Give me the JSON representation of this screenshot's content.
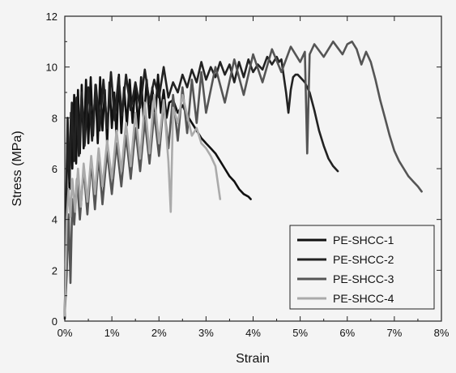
{
  "chart_data": {
    "type": "line",
    "title": "",
    "xlabel": "Strain",
    "ylabel": "Stress (MPa)",
    "xlim": [
      0,
      8
    ],
    "ylim": [
      0,
      12
    ],
    "x_ticks": [
      0,
      1,
      2,
      3,
      4,
      5,
      6,
      7,
      8
    ],
    "x_tick_labels": [
      "0%",
      "1%",
      "2%",
      "3%",
      "4%",
      "5%",
      "6%",
      "7%",
      "8%"
    ],
    "y_ticks": [
      0,
      2,
      4,
      6,
      8,
      10,
      12
    ],
    "y_tick_labels": [
      "0",
      "2",
      "4",
      "6",
      "8",
      "10",
      "12"
    ],
    "grid": false,
    "legend_position": "bottom-right",
    "series": [
      {
        "name": "PE-SHCC-1",
        "color": "#111111",
        "x": [
          0,
          0.03,
          0.06,
          0.1,
          0.13,
          0.16,
          0.2,
          0.24,
          0.28,
          0.32,
          0.36,
          0.4,
          0.45,
          0.5,
          0.55,
          0.6,
          0.65,
          0.7,
          0.75,
          0.8,
          0.85,
          0.9,
          0.95,
          1.0,
          1.05,
          1.1,
          1.15,
          1.2,
          1.26,
          1.32,
          1.38,
          1.44,
          1.5,
          1.56,
          1.62,
          1.68,
          1.74,
          1.8,
          1.86,
          1.92,
          1.98,
          2.04,
          2.1,
          2.16,
          2.22,
          2.3,
          2.4,
          2.5,
          2.6,
          2.7,
          2.8,
          2.9,
          3.0,
          3.1,
          3.2,
          3.3,
          3.4,
          3.5,
          3.6,
          3.7,
          3.8,
          3.9,
          3.95
        ],
        "y": [
          0.2,
          4.5,
          7.6,
          5.2,
          8.2,
          6.0,
          8.9,
          6.2,
          9.1,
          6.6,
          9.3,
          6.8,
          9.5,
          7.0,
          9.6,
          7.3,
          9.3,
          7.0,
          9.6,
          7.5,
          9.1,
          7.0,
          9.4,
          7.6,
          9.0,
          7.2,
          9.7,
          7.4,
          9.2,
          7.7,
          9.5,
          7.8,
          9.3,
          7.6,
          9.6,
          7.8,
          9.5,
          8.0,
          9.2,
          7.9,
          9.7,
          8.2,
          9.1,
          8.0,
          8.6,
          8.7,
          8.2,
          8.5,
          8.1,
          7.8,
          7.5,
          7.2,
          7.0,
          6.8,
          6.6,
          6.3,
          6.0,
          5.7,
          5.5,
          5.2,
          5.0,
          4.9,
          4.8
        ]
      },
      {
        "name": "PE-SHCC-2",
        "color": "#222222",
        "x": [
          0,
          0.03,
          0.06,
          0.1,
          0.15,
          0.2,
          0.25,
          0.3,
          0.36,
          0.42,
          0.5,
          0.58,
          0.66,
          0.74,
          0.82,
          0.9,
          0.98,
          1.06,
          1.14,
          1.22,
          1.3,
          1.4,
          1.5,
          1.6,
          1.7,
          1.8,
          1.9,
          2.0,
          2.1,
          2.2,
          2.3,
          2.4,
          2.5,
          2.6,
          2.7,
          2.8,
          2.9,
          3.0,
          3.1,
          3.2,
          3.3,
          3.4,
          3.5,
          3.6,
          3.7,
          3.8,
          3.9,
          4.0,
          4.1,
          4.2,
          4.3,
          4.4,
          4.5,
          4.55,
          4.6,
          4.7,
          4.75,
          4.8,
          4.85,
          4.9,
          4.95,
          5.0,
          5.1,
          5.2,
          5.3,
          5.4,
          5.5,
          5.6,
          5.7,
          5.8
        ],
        "y": [
          0.1,
          4.6,
          8.0,
          5.5,
          8.6,
          6.3,
          8.8,
          6.5,
          9.0,
          6.9,
          9.2,
          7.1,
          9.3,
          7.5,
          9.5,
          7.6,
          9.8,
          7.9,
          9.6,
          8.1,
          9.7,
          8.3,
          9.4,
          8.4,
          9.9,
          8.6,
          9.5,
          8.8,
          10.0,
          8.8,
          9.4,
          9.0,
          9.7,
          9.2,
          9.9,
          9.4,
          10.2,
          9.5,
          10.0,
          9.6,
          10.2,
          9.7,
          10.1,
          9.4,
          10.2,
          9.6,
          10.3,
          9.8,
          10.1,
          9.9,
          10.4,
          10.1,
          10.4,
          10.2,
          10.3,
          9.0,
          8.2,
          9.1,
          9.6,
          9.7,
          9.7,
          9.6,
          9.4,
          9.0,
          8.3,
          7.5,
          6.9,
          6.4,
          6.1,
          5.9
        ]
      },
      {
        "name": "PE-SHCC-3",
        "color": "#555555",
        "x": [
          0,
          0.04,
          0.08,
          0.12,
          0.16,
          0.2,
          0.26,
          0.32,
          0.4,
          0.48,
          0.56,
          0.64,
          0.72,
          0.8,
          0.9,
          1.0,
          1.1,
          1.2,
          1.3,
          1.4,
          1.5,
          1.6,
          1.7,
          1.8,
          1.9,
          2.0,
          2.1,
          2.2,
          2.3,
          2.4,
          2.5,
          2.6,
          2.7,
          2.8,
          2.9,
          3.0,
          3.2,
          3.4,
          3.6,
          3.8,
          4.0,
          4.2,
          4.4,
          4.6,
          4.8,
          5.0,
          5.1,
          5.15,
          5.2,
          5.3,
          5.5,
          5.7,
          5.9,
          6.0,
          6.1,
          6.2,
          6.3,
          6.4,
          6.5,
          6.6,
          6.7,
          6.8,
          6.9,
          7.0,
          7.1,
          7.2,
          7.3,
          7.4,
          7.5,
          7.58
        ],
        "y": [
          0.3,
          1.8,
          4.2,
          1.5,
          4.8,
          3.8,
          5.6,
          4.0,
          6.0,
          4.2,
          6.3,
          4.4,
          6.5,
          4.6,
          6.7,
          5.0,
          7.0,
          5.3,
          7.3,
          5.6,
          7.6,
          5.9,
          7.9,
          6.2,
          8.2,
          6.5,
          8.6,
          6.8,
          8.9,
          7.1,
          9.2,
          7.4,
          9.5,
          7.8,
          9.8,
          8.2,
          10.0,
          8.6,
          10.3,
          8.9,
          10.5,
          9.4,
          10.7,
          9.8,
          10.8,
          10.2,
          10.6,
          6.6,
          10.5,
          10.9,
          10.4,
          11.0,
          10.5,
          10.9,
          11.0,
          10.7,
          10.1,
          10.6,
          10.2,
          9.5,
          8.7,
          8.0,
          7.3,
          6.7,
          6.3,
          6.0,
          5.7,
          5.5,
          5.3,
          5.1
        ]
      },
      {
        "name": "PE-SHCC-4",
        "color": "#aaaaaa",
        "x": [
          0,
          0.04,
          0.08,
          0.12,
          0.16,
          0.22,
          0.28,
          0.34,
          0.4,
          0.48,
          0.56,
          0.64,
          0.72,
          0.8,
          0.9,
          1.0,
          1.1,
          1.2,
          1.3,
          1.4,
          1.5,
          1.6,
          1.7,
          1.8,
          1.9,
          2.0,
          2.1,
          2.2,
          2.25,
          2.3,
          2.4,
          2.5,
          2.6,
          2.7,
          2.8,
          2.9,
          3.0,
          3.1,
          3.2,
          3.3
        ],
        "y": [
          0.2,
          4.0,
          5.2,
          4.1,
          5.6,
          4.3,
          6.0,
          4.5,
          6.2,
          4.7,
          6.5,
          5.0,
          6.8,
          5.3,
          7.1,
          5.6,
          7.5,
          5.9,
          7.8,
          6.1,
          8.2,
          6.4,
          8.6,
          6.6,
          8.9,
          7.0,
          8.7,
          6.3,
          4.3,
          8.4,
          7.8,
          8.9,
          8.1,
          7.3,
          7.6,
          7.0,
          6.8,
          6.5,
          6.1,
          4.8
        ]
      }
    ]
  }
}
